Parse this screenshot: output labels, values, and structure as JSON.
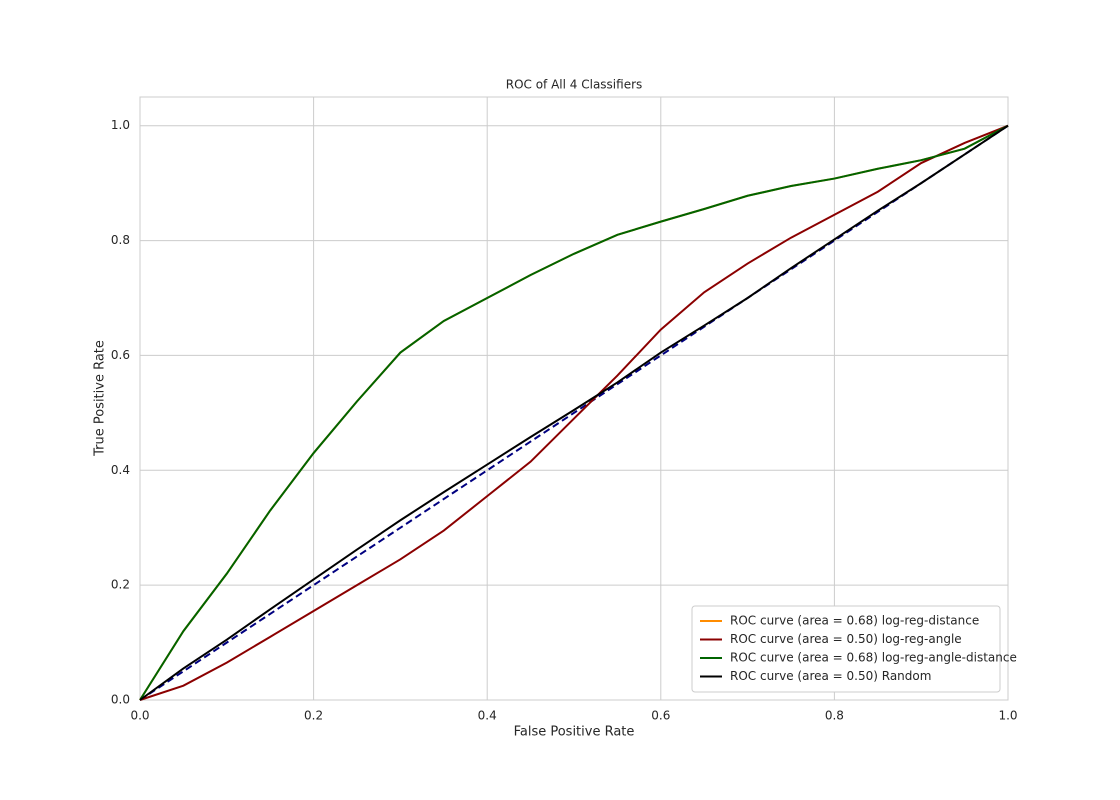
{
  "chart_data": {
    "type": "line",
    "title": "ROC of All 4 Classifiers",
    "xlabel": "False Positive Rate",
    "ylabel": "True Positive Rate",
    "x": [
      0,
      0.05,
      0.1,
      0.15,
      0.2,
      0.25,
      0.3,
      0.35,
      0.4,
      0.45,
      0.5,
      0.55,
      0.6,
      0.65,
      0.7,
      0.75,
      0.8,
      0.85,
      0.9,
      0.95,
      1.0
    ],
    "series": [
      {
        "name": "ROC curve (area = 0.68) log-reg-distance",
        "color": "#ff8c00",
        "values": [
          0,
          0.12,
          0.22,
          0.33,
          0.43,
          0.52,
          0.605,
          0.66,
          0.7,
          0.74,
          0.777,
          0.81,
          0.833,
          0.855,
          0.878,
          0.895,
          0.908,
          0.925,
          0.94,
          0.96,
          1.0
        ]
      },
      {
        "name": "ROC curve (area = 0.50) log-reg-angle",
        "color": "#8b0000",
        "values": [
          0,
          0.025,
          0.065,
          0.11,
          0.155,
          0.2,
          0.245,
          0.295,
          0.355,
          0.415,
          0.49,
          0.565,
          0.645,
          0.71,
          0.76,
          0.805,
          0.845,
          0.885,
          0.935,
          0.97,
          1.0
        ]
      },
      {
        "name": "ROC curve (area = 0.68) log-reg-angle-distance",
        "color": "#006400",
        "values": [
          0,
          0.12,
          0.22,
          0.33,
          0.43,
          0.52,
          0.605,
          0.66,
          0.7,
          0.74,
          0.777,
          0.81,
          0.833,
          0.855,
          0.878,
          0.895,
          0.908,
          0.925,
          0.94,
          0.96,
          1.0
        ]
      },
      {
        "name": "ROC curve (area = 0.50) Random",
        "color": "#000000",
        "values": [
          0,
          0.055,
          0.105,
          0.158,
          0.21,
          0.262,
          0.313,
          0.362,
          0.41,
          0.458,
          0.505,
          0.553,
          0.605,
          0.652,
          0.7,
          0.752,
          0.802,
          0.852,
          0.9,
          0.95,
          1.0
        ]
      }
    ],
    "reference_line": {
      "x": [
        0,
        1
      ],
      "y": [
        0,
        1
      ],
      "color": "#000080",
      "dashed": true
    },
    "xlim": [
      0,
      1.0
    ],
    "ylim": [
      0,
      1.05
    ],
    "xticks": [
      {
        "value": 0,
        "label": "0.0"
      },
      0.2,
      0.4,
      0.6,
      0.8,
      {
        "value": 1,
        "label": "1.0"
      }
    ],
    "yticks": [
      {
        "value": 0,
        "label": "0.0"
      },
      0.2,
      0.4,
      0.6,
      0.8,
      {
        "value": 1,
        "label": "1.0"
      }
    ],
    "grid": true,
    "legend": "lower right"
  }
}
